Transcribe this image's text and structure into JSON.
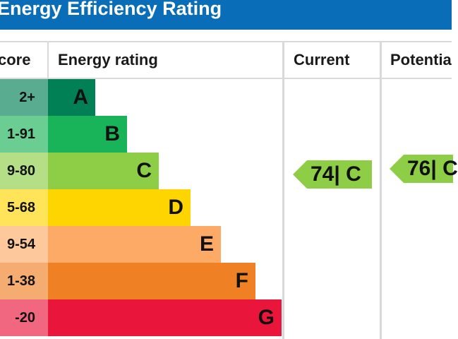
{
  "header": {
    "title": "Energy Efficiency Rating"
  },
  "columns": {
    "score": "core",
    "rating": "Energy rating",
    "current": "Current",
    "potential": "Potentia"
  },
  "chart_data": {
    "type": "bar",
    "bands": [
      {
        "letter": "A",
        "score": "2+",
        "color": "#008054"
      },
      {
        "letter": "B",
        "score": "1-91",
        "color": "#19b459"
      },
      {
        "letter": "C",
        "score": "9-80",
        "color": "#8dce46"
      },
      {
        "letter": "D",
        "score": "5-68",
        "color": "#ffd500"
      },
      {
        "letter": "E",
        "score": "9-54",
        "color": "#fcaa65"
      },
      {
        "letter": "F",
        "score": "1-38",
        "color": "#ef8023"
      },
      {
        "letter": "G",
        "score": "-20",
        "color": "#e9153b"
      }
    ],
    "current": {
      "value": 74,
      "band": "C",
      "label": "74| C"
    },
    "potential": {
      "value": 76,
      "band": "C",
      "label": "76| C"
    }
  }
}
